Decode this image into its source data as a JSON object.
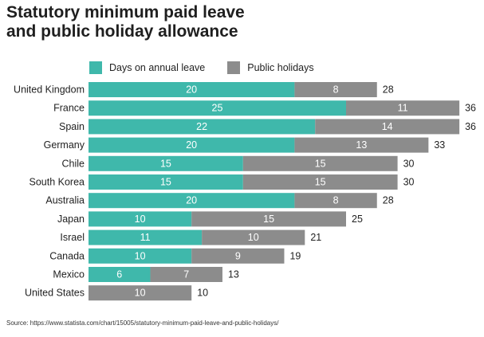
{
  "title": {
    "line1": "Statutory minimum paid leave",
    "line2": "and public holiday allowance"
  },
  "source": "Source: https://www.statista.com/chart/15005/statutory-minimum-paid-leave-and-public-holidays/",
  "colors": {
    "annual_leave": "#3fb8ab",
    "public_holidays": "#8c8c8c",
    "segment_text": "#ffffff",
    "label_text": "#222222"
  },
  "chart_data": {
    "type": "bar",
    "orientation": "horizontal",
    "stacked": true,
    "title": "Statutory minimum paid leave and public holiday allowance",
    "legend_position": "top",
    "grid": false,
    "categories": [
      "United Kingdom",
      "France",
      "Spain",
      "Germany",
      "Chile",
      "South Korea",
      "Australia",
      "Japan",
      "Israel",
      "Canada",
      "Mexico",
      "United States"
    ],
    "series": [
      {
        "name": "Days on annual leave",
        "values": [
          20,
          25,
          22,
          20,
          15,
          15,
          20,
          10,
          11,
          10,
          6,
          0
        ]
      },
      {
        "name": "Public holidays",
        "values": [
          8,
          11,
          14,
          13,
          15,
          15,
          8,
          15,
          10,
          9,
          7,
          10
        ]
      }
    ],
    "totals": [
      28,
      36,
      36,
      33,
      30,
      30,
      28,
      25,
      21,
      19,
      13,
      10
    ],
    "xlim": [
      0,
      36
    ]
  }
}
